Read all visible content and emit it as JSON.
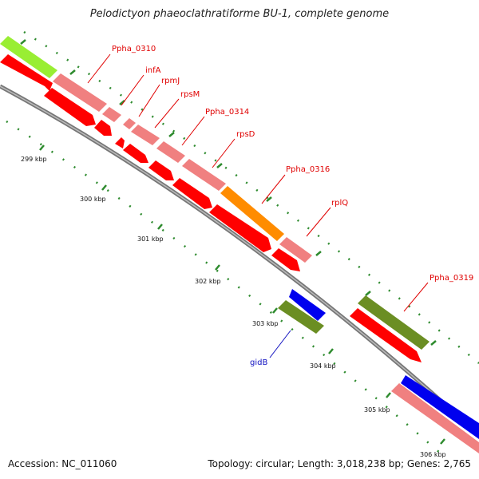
{
  "title": "Pelodictyon phaeoclathratiforme BU-1, complete genome",
  "footer": {
    "accession": "Accession: NC_011060",
    "topology": "Topology: circular; Length: 3,018,238 bp; Genes: 2,765"
  },
  "colors": {
    "gene_red": "#ff0000",
    "gene_pink": "#f08080",
    "gene_lime": "#99ee33",
    "gene_orange": "#ff8c00",
    "gene_olive": "#6b8e23",
    "gene_blue": "#0000ee",
    "label_red": "#e00000",
    "label_blue": "#1010c0",
    "backbone": "#888888",
    "tick_green": "#2e8b2e"
  },
  "gene_labels": [
    {
      "id": "ppha0310",
      "text": "Ppha_0310",
      "color": "red"
    },
    {
      "id": "infa",
      "text": "infA",
      "color": "red"
    },
    {
      "id": "rpmj",
      "text": "rpmJ",
      "color": "red"
    },
    {
      "id": "rpsm",
      "text": "rpsM",
      "color": "red"
    },
    {
      "id": "ppha0314",
      "text": "Ppha_0314",
      "color": "red"
    },
    {
      "id": "rpsd",
      "text": "rpsD",
      "color": "red"
    },
    {
      "id": "ppha0316",
      "text": "Ppha_0316",
      "color": "red"
    },
    {
      "id": "rplq",
      "text": "rplQ",
      "color": "red"
    },
    {
      "id": "ppha0319",
      "text": "Ppha_0319",
      "color": "red"
    },
    {
      "id": "gidb",
      "text": "gidB",
      "color": "blue"
    }
  ],
  "kbp_labels": [
    {
      "id": "k299",
      "text": "299 kbp"
    },
    {
      "id": "k300",
      "text": "300 kbp"
    },
    {
      "id": "k301",
      "text": "301 kbp"
    },
    {
      "id": "k302",
      "text": "302 kbp"
    },
    {
      "id": "k303",
      "text": "303 kbp"
    },
    {
      "id": "k304",
      "text": "304 kbp"
    },
    {
      "id": "k305",
      "text": "305 kbp"
    },
    {
      "id": "k306",
      "text": "306 kbp"
    }
  ]
}
